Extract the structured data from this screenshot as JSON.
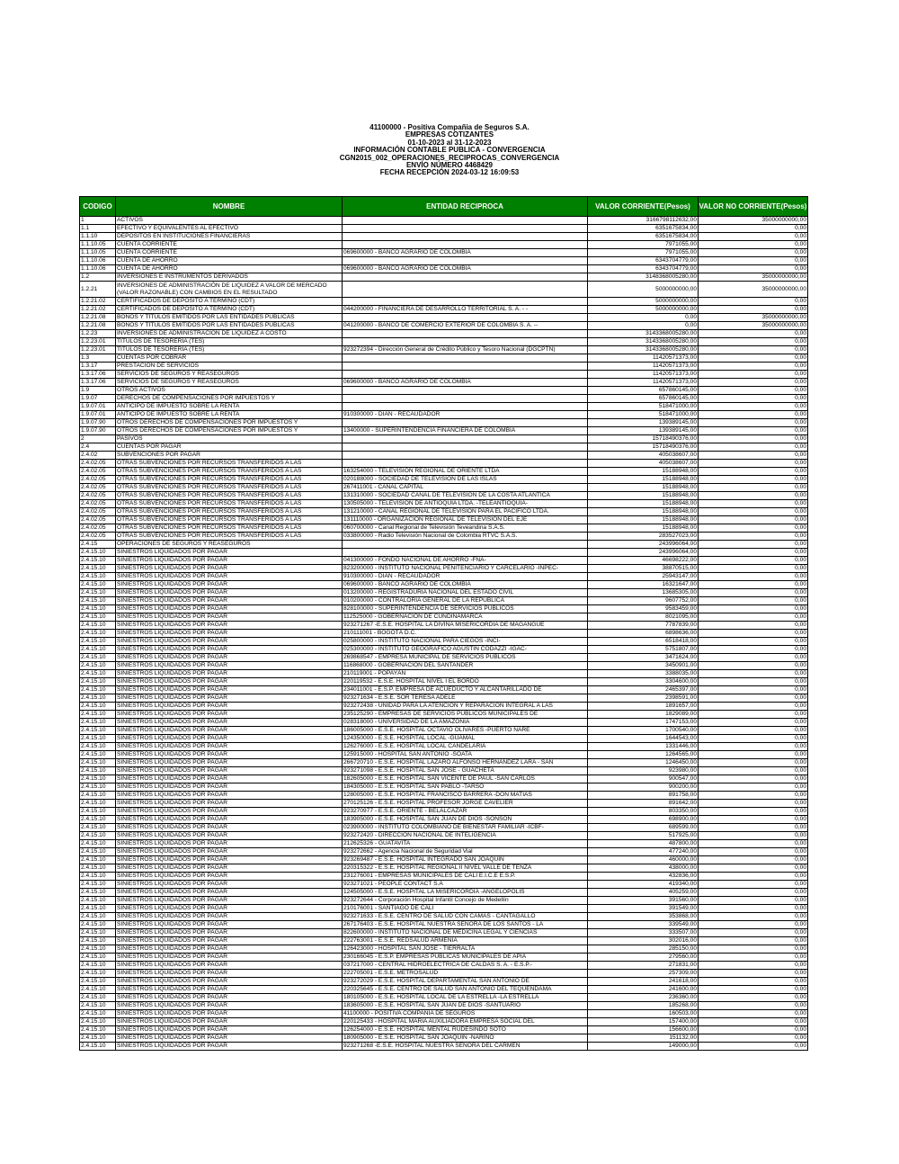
{
  "header": {
    "lines": [
      "41100000 - Positiva Compañia de Seguros S.A.",
      "EMPRESAS COTIZANTES",
      "01-10-2023 al 31-12-2023",
      "INFORMACIÓN CONTABLE PUBLICA - CONVERGENCIA",
      "CGN2015_002_OPERACIONES_RECIPROCAS_CONVERGENCIA",
      "ENVÍO NÚMERO 4468429",
      "FECHA RECEPCIÓN 2024-03-12 16:09:53"
    ]
  },
  "table": {
    "header_color": "#008000",
    "columns": [
      "CODIGO",
      "NOMBRE",
      "ENTIDAD RECIPROCA",
      "VALOR CORRIENTE(Pesos)",
      "VALOR NO CORRIENTE(Pesos)"
    ],
    "rows": [
      [
        "1",
        "ACTIVOS",
        "",
        "3166798112632,00",
        "35000000000,00"
      ],
      [
        "1.1",
        "EFECTIVO Y EQUIVALENTES AL EFECTIVO",
        "",
        "6351675834,00",
        "0,00"
      ],
      [
        "1.1.10",
        "DEPÓSITOS EN INSTITUCIONES FINANCIERAS",
        "",
        "6351675834,00",
        "0,00"
      ],
      [
        "1.1.10.05",
        "CUENTA CORRIENTE",
        "",
        "7971055,00",
        "0,00"
      ],
      [
        "1.1.10.05",
        "CUENTA CORRIENTE",
        "069600000 - BANCO AGRARIO DE COLOMBIA",
        "7971055,00",
        "0,00"
      ],
      [
        "1.1.10.06",
        "CUENTA DE AHORRO",
        "",
        "6343704779,00",
        "0,00"
      ],
      [
        "1.1.10.06",
        "CUENTA DE AHORRO",
        "069600000 - BANCO AGRARIO DE COLOMBIA",
        "6343704779,00",
        "0,00"
      ],
      [
        "1.2",
        "INVERSIONES E INSTRUMENTOS DERIVADOS",
        "",
        "3148368005280,00",
        "35000000000,00"
      ],
      [
        "1.2.21",
        "INVERSIONES DE ADMINISTRACIÓN DE LIQUIDEZ A VALOR DE MERCADO (VALOR RAZONABLE) CON CAMBIOS EN EL RESULTADO",
        "",
        "5000000000,00",
        "35000000000,00"
      ],
      [
        "1.2.21.02",
        "CERTIFICADOS DE DEPÓSITO A TÉRMINO (CDT)",
        "",
        "5000000000,00",
        "0,00"
      ],
      [
        "1.2.21.02",
        "CERTIFICADOS DE DEPÓSITO A TÉRMINO (CDT)",
        "044200000 - FINANCIERA DE DESARROLLO TERRITORIAL S. A. - -",
        "5000000000,00",
        "0,00"
      ],
      [
        "1.2.21.08",
        "BONOS Y TÍTULOS EMITIDOS POR LAS ENTIDADES PÚBLICAS",
        "",
        "0,00",
        "35000000000,00"
      ],
      [
        "1.2.21.08",
        "BONOS Y TÍTULOS EMITIDOS POR LAS ENTIDADES PÚBLICAS",
        "041200000 - BANCO DE COMERCIO EXTERIOR DE COLOMBIA S. A. --",
        "0,00",
        "35000000000,00"
      ],
      [
        "1.2.23",
        "INVERSIONES DE ADMINISTRACIÓN DE LIQUIDEZ A COSTO",
        "",
        "3143368005280,00",
        "0,00"
      ],
      [
        "1.2.23.01",
        "TÍTULOS DE TESORERÍA (TES)",
        "",
        "3143368005280,00",
        "0,00"
      ],
      [
        "1.2.23.01",
        "TÍTULOS DE TESORERÍA (TES)",
        "923272394 - Dirección General de Crédito Público y Tesoro Nacional (DGCPTN)",
        "3143368005280,00",
        "0,00"
      ],
      [
        "1.3",
        "CUENTAS POR COBRAR",
        "",
        "11420571373,00",
        "0,00"
      ],
      [
        "1.3.17",
        "PRESTACIÓN DE SERVICIOS",
        "",
        "11420571373,00",
        "0,00"
      ],
      [
        "1.3.17.06",
        "SERVICIOS DE SEGUROS Y REASEGUROS",
        "",
        "11420571373,00",
        "0,00"
      ],
      [
        "1.3.17.06",
        "SERVICIOS DE SEGUROS Y REASEGUROS",
        "069600000 - BANCO AGRARIO DE COLOMBIA",
        "11420571373,00",
        "0,00"
      ],
      [
        "1.9",
        "OTROS ACTIVOS",
        "",
        "657860145,00",
        "0,00"
      ],
      [
        "1.9.07",
        "DERECHOS DE COMPENSACIONES POR IMPUESTOS Y",
        "",
        "657860145,00",
        "0,00"
      ],
      [
        "1.9.07.01",
        "ANTICIPO DE IMPUESTO SOBRE LA RENTA",
        "",
        "518471000,00",
        "0,00"
      ],
      [
        "1.9.07.01",
        "ANTICIPO DE IMPUESTO SOBRE LA RENTA",
        "910300000 - DIAN - RECAUDADOR",
        "518471000,00",
        "0,00"
      ],
      [
        "1.9.07.90",
        "OTROS DERECHOS DE COMPENSACIONES POR IMPUESTOS Y",
        "",
        "139389145,00",
        "0,00"
      ],
      [
        "1.9.07.90",
        "OTROS DERECHOS DE COMPENSACIONES POR IMPUESTOS Y",
        "13400000 - SUPERINTENDENCIA FINANCIERA DE COLOMBIA",
        "139389145,00",
        "0,00"
      ],
      [
        "2",
        "PASIVOS",
        "",
        "15718490376,00",
        "0,00"
      ],
      [
        "2.4",
        "CUENTAS POR PAGAR",
        "",
        "15718490376,00",
        "0,00"
      ],
      [
        "2.4.02",
        "SUBVENCIONES POR PAGAR",
        "",
        "405038607,00",
        "0,00"
      ],
      [
        "2.4.02.05",
        "OTRAS SUBVENCIONES POR RECURSOS TRANSFERIDOS A LAS",
        "",
        "405038607,00",
        "0,00"
      ],
      [
        "2.4.02.05",
        "OTRAS SUBVENCIONES POR RECURSOS TRANSFERIDOS A LAS",
        "163254000 - TELEVISION REGIONAL DE ORIENTE LTDA",
        "15188948,00",
        "0,00"
      ],
      [
        "2.4.02.05",
        "OTRAS SUBVENCIONES POR RECURSOS TRANSFERIDOS A LAS",
        "020188000 - SOCIEDAD DE TELEVISIÓN DE LAS ISLAS",
        "15188948,00",
        "0,00"
      ],
      [
        "2.4.02.05",
        "OTRAS SUBVENCIONES POR RECURSOS TRANSFERIDOS A LAS",
        "267411001 - CANAL CAPITAL",
        "15188948,00",
        "0,00"
      ],
      [
        "2.4.02.05",
        "OTRAS SUBVENCIONES POR RECURSOS TRANSFERIDOS A LAS",
        "131310000 - SOCIEDAD CANAL DE TELEVISION DE LA COSTA ATLANTICA",
        "15188948,00",
        "0,00"
      ],
      [
        "2.4.02.05",
        "OTRAS SUBVENCIONES POR RECURSOS TRANSFERIDOS A LAS",
        "130505000 - TELEVISION DE ANTIOQUIA LTDA. -TELEANTIOQUIA-",
        "15188948,00",
        "0,00"
      ],
      [
        "2.4.02.05",
        "OTRAS SUBVENCIONES POR RECURSOS TRANSFERIDOS A LAS",
        "131210000 - CANAL REGIONAL DE TELEVISIÓN PARA EL PACIFICO LTDA.",
        "15188948,00",
        "0,00"
      ],
      [
        "2.4.02.05",
        "OTRAS SUBVENCIONES POR RECURSOS TRANSFERIDOS A LAS",
        "131110000 - ORGANIZACION REGIONAL DE TELEVISION DEL EJE",
        "15188948,00",
        "0,00"
      ],
      [
        "2.4.02.05",
        "OTRAS SUBVENCIONES POR RECURSOS TRANSFERIDOS A LAS",
        "060700000 - Canal Regional de Televisión Teveandina S.A.S.",
        "15188948,00",
        "0,00"
      ],
      [
        "2.4.02.05",
        "OTRAS SUBVENCIONES POR RECURSOS TRANSFERIDOS A LAS",
        "033800000 - Radio Televisión Nacional de Colombia RTVC S.A.S.",
        "283527023,00",
        "0,00"
      ],
      [
        "2.4.15",
        "OPERACIONES DE SEGUROS Y REASEGUROS",
        "",
        "243996064,00",
        "0,00"
      ],
      [
        "2.4.15.10",
        "SINIESTROS LIQUIDADOS POR PAGAR",
        "",
        "243996064,00",
        "0,00"
      ],
      [
        "2.4.15.10",
        "SINIESTROS LIQUIDADOS POR PAGAR",
        "041300000 - FONDO NACIONAL DE AHORRO -FNA-",
        "46698222,00",
        "0,00"
      ],
      [
        "2.4.15.10",
        "SINIESTROS LIQUIDADOS POR PAGAR",
        "823200000 - INSTITUTO NACIONAL PENITENCIARIO Y CARCELARIO -INPEC-",
        "38870515,00",
        "0,00"
      ],
      [
        "2.4.15.10",
        "SINIESTROS LIQUIDADOS POR PAGAR",
        "910300000 - DIAN - RECAUDADOR",
        "25943147,00",
        "0,00"
      ],
      [
        "2.4.15.10",
        "SINIESTROS LIQUIDADOS POR PAGAR",
        "069600000 - BANCO AGRARIO DE COLOMBIA",
        "16321647,00",
        "0,00"
      ],
      [
        "2.4.15.10",
        "SINIESTROS LIQUIDADOS POR PAGAR",
        "013200000 - REGISTRADURIA NACIONAL DEL ESTADO CIVIL",
        "13685305,00",
        "0,00"
      ],
      [
        "2.4.15.10",
        "SINIESTROS LIQUIDADOS POR PAGAR",
        "010200000 - CONTRALORIA GENERAL DE LA REPUBLICA",
        "9607752,00",
        "0,00"
      ],
      [
        "2.4.15.10",
        "SINIESTROS LIQUIDADOS POR PAGAR",
        "828100000 - SUPERINTENDENCIA DE SERVICIOS PUBLICOS",
        "9583459,00",
        "0,00"
      ],
      [
        "2.4.15.10",
        "SINIESTROS LIQUIDADOS POR PAGAR",
        "112525000 - GOBERNACIÓN DE CUNDINAMARCA",
        "8021095,00",
        "0,00"
      ],
      [
        "2.4.15.10",
        "SINIESTROS LIQUIDADOS POR PAGAR",
        "923271267 -E.S.E. HOSPITAL LA DIVINA MISERICORDIA DE MAGANGUE",
        "7787839,00",
        "0,00"
      ],
      [
        "2.4.15.10",
        "SINIESTROS LIQUIDADOS POR PAGAR",
        "210111001 - BOGOTÁ D.C.",
        "6898636,00",
        "0,00"
      ],
      [
        "2.4.15.10",
        "SINIESTROS LIQUIDADOS POR PAGAR",
        "025800000 - INSTITUTO NACIONAL PARA CIEGOS -INCI-",
        "6518418,00",
        "0,00"
      ],
      [
        "2.4.15.10",
        "SINIESTROS LIQUIDADOS POR PAGAR",
        "025300000 - INSTITUTO GEOGRAFICO AGUSTIN CODAZZI -IGAC-",
        "5751807,00",
        "0,00"
      ],
      [
        "2.4.15.10",
        "SINIESTROS LIQUIDADOS POR PAGAR",
        "269868547 - EMPRESA MUNICIPAL DE SERVICIOS PÚBLICOS",
        "3471624,00",
        "0,00"
      ],
      [
        "2.4.15.10",
        "SINIESTROS LIQUIDADOS POR PAGAR",
        "116868000 - GOBERNACIÓN DEL SANTANDER",
        "3450901,00",
        "0,00"
      ],
      [
        "2.4.15.10",
        "SINIESTROS LIQUIDADOS POR PAGAR",
        "210119001 - POPAYÁN",
        "3388035,00",
        "0,00"
      ],
      [
        "2.4.15.10",
        "SINIESTROS LIQUIDADOS POR PAGAR",
        "220119532 - E.S.E. HOSPITAL NIVEL I EL BORDO",
        "3304600,00",
        "0,00"
      ],
      [
        "2.4.15.10",
        "SINIESTROS LIQUIDADOS POR PAGAR",
        "234011001 - E.S.P. EMPRESA DE ACUEDUCTO Y ALCANTARILLADO DE",
        "2465397,00",
        "0,00"
      ],
      [
        "2.4.15.10",
        "SINIESTROS LIQUIDADOS POR PAGAR",
        "923271634 - E.S.E. SOR TERESA ADELE",
        "2398591,00",
        "0,00"
      ],
      [
        "2.4.15.10",
        "SINIESTROS LIQUIDADOS POR PAGAR",
        "923272438 - UNIDAD PARA LA ATENCIÓN Y REPARACIÓN INTEGRAL A LAS",
        "1891657,00",
        "0,00"
      ],
      [
        "2.4.15.10",
        "SINIESTROS LIQUIDADOS POR PAGAR",
        "235125290 - EMPRESAS DE SERVICIOS PUBLICOS MUNICIPALES DE",
        "1829089,00",
        "0,00"
      ],
      [
        "2.4.15.10",
        "SINIESTROS LIQUIDADOS POR PAGAR",
        "028318000 - UNIVERSIDAD DE LA AMAZONIA",
        "1747153,00",
        "0,00"
      ],
      [
        "2.4.15.10",
        "SINIESTROS LIQUIDADOS POR PAGAR",
        "186005000 - E.S.E. HOSPITAL OCTAVIO OLIVARES -PUERTO NARE",
        "1700540,00",
        "0,00"
      ],
      [
        "2.4.15.10",
        "SINIESTROS LIQUIDADOS POR PAGAR",
        "124350000 - E.S.E. HOSPITAL LOCAL -GUAMAL",
        "1644543,00",
        "0,00"
      ],
      [
        "2.4.15.10",
        "SINIESTROS LIQUIDADOS POR PAGAR",
        "126276000 - E.S.E. HOSPITAL LOCAL CANDELARIA",
        "1331446,00",
        "0,00"
      ],
      [
        "2.4.15.10",
        "SINIESTROS LIQUIDADOS POR PAGAR",
        "125915000 - HOSPITAL SAN ANTONIO -SOATA",
        "1264565,00",
        "0,00"
      ],
      [
        "2.4.15.10",
        "SINIESTROS LIQUIDADOS POR PAGAR",
        "266720710 - E.S.E. HOSPITAL LAZARO ALFONSO HERNANDEZ LARA - SAN",
        "1246450,00",
        "0,00"
      ],
      [
        "2.4.15.10",
        "SINIESTROS LIQUIDADOS POR PAGAR",
        "923271098 - E.S.E. HOSPITAL SAN JOSE - GUACHETA",
        "923980,00",
        "0,00"
      ],
      [
        "2.4.15.10",
        "SINIESTROS LIQUIDADOS POR PAGAR",
        "182605000 - E.S.E. HOSPITAL SAN VICENTE DE PAUL -SAN CARLOS",
        "900547,00",
        "0,00"
      ],
      [
        "2.4.15.10",
        "SINIESTROS LIQUIDADOS POR PAGAR",
        "184305000 - E.S.E. HOSPITAL SAN PABLO -TARSO",
        "900200,00",
        "0,00"
      ],
      [
        "2.4.15.10",
        "SINIESTROS LIQUIDADOS POR PAGAR",
        "128005000 - E.S.E. HOSPITAL FRANCISCO BARRERA -DON MATIAS",
        "891758,00",
        "0,00"
      ],
      [
        "2.4.15.10",
        "SINIESTROS LIQUIDADOS POR PAGAR",
        "270125126 - E.S.E. HOSPITAL PROFESOR JORGE CAVELIER",
        "891642,00",
        "0,00"
      ],
      [
        "2.4.15.10",
        "SINIESTROS LIQUIDADOS POR PAGAR",
        "923270977 - E.S.E. ORIENTE - BELALCAZAR",
        "803350,00",
        "0,00"
      ],
      [
        "2.4.15.10",
        "SINIESTROS LIQUIDADOS POR PAGAR",
        "183905000 - E.S.E. HOSPITAL SAN JUAN DE DIOS -SONSÓN",
        "698900,00",
        "0,00"
      ],
      [
        "2.4.15.10",
        "SINIESTROS LIQUIDADOS POR PAGAR",
        "023900000 - INSTITUTO COLOMBIANO DE BIENESTAR FAMILIAR -ICBF-",
        "689599,00",
        "0,00"
      ],
      [
        "2.4.15.10",
        "SINIESTROS LIQUIDADOS POR PAGAR",
        "923272420 - DIRECCIÓN NACIONAL DE INTELIGENCIA",
        "517925,00",
        "0,00"
      ],
      [
        "2.4.15.10",
        "SINIESTROS LIQUIDADOS POR PAGAR",
        "212625326 - GUATAVITA",
        "487800,00",
        "0,00"
      ],
      [
        "2.4.15.10",
        "SINIESTROS LIQUIDADOS POR PAGAR",
        "923272662 - Agencia Nacional de Seguridad Vial",
        "477240,00",
        "0,00"
      ],
      [
        "2.4.15.10",
        "SINIESTROS LIQUIDADOS POR PAGAR",
        "923269487 - E.S.E. HOSPITAL INTEGRADO SAN JOAQUIN",
        "460000,00",
        "0,00"
      ],
      [
        "2.4.15.10",
        "SINIESTROS LIQUIDADOS POR PAGAR",
        "220315322 - E.S.E. HOSPITAL REGIONAL II NIVEL VALLE DE TENZA",
        "438000,00",
        "0,00"
      ],
      [
        "2.4.15.10",
        "SINIESTROS LIQUIDADOS POR PAGAR",
        "231276001 - EMPRESAS MUNICIPALES DE CALI E.I.C.E E.S.P.",
        "432836,00",
        "0,00"
      ],
      [
        "2.4.15.10",
        "SINIESTROS LIQUIDADOS POR PAGAR",
        "923271021 - PEOPLE CONTACT S.A",
        "419340,00",
        "0,00"
      ],
      [
        "2.4.15.10",
        "SINIESTROS LIQUIDADOS POR PAGAR",
        "124505000 - E.S.E. HOSPITAL LA MISERICORDIA -ANGELÓPOLIS",
        "405259,00",
        "0,00"
      ],
      [
        "2.4.15.10",
        "SINIESTROS LIQUIDADOS POR PAGAR",
        "923272644 - Corporación Hospital Infantil Concejo de Medellín",
        "391560,00",
        "0,00"
      ],
      [
        "2.4.15.10",
        "SINIESTROS LIQUIDADOS POR PAGAR",
        "210176001 - SANTIAGO DE CALI",
        "391549,00",
        "0,00"
      ],
      [
        "2.4.15.10",
        "SINIESTROS LIQUIDADOS POR PAGAR",
        "923271633 - E.S.E. CENTRO DE SALUD CON CAMAS - CANTAGALLO",
        "353868,00",
        "0,00"
      ],
      [
        "2.4.15.10",
        "SINIESTROS LIQUIDADOS POR PAGAR",
        "267176403 - E.S.E. HOSPITAL NUESTRA SEÑORA DE LOS SANTOS - LA",
        "339549,00",
        "0,00"
      ],
      [
        "2.4.15.10",
        "SINIESTROS LIQUIDADOS POR PAGAR",
        "822600000 - INSTITUTO NACIONAL DE MEDICINA LEGAL Y CIENCIAS",
        "333507,00",
        "0,00"
      ],
      [
        "2.4.15.10",
        "SINIESTROS LIQUIDADOS POR PAGAR",
        "222763001 - E.S.E. REDSALUD ARMENIA",
        "302016,00",
        "0,00"
      ],
      [
        "2.4.15.10",
        "SINIESTROS LIQUIDADOS POR PAGAR",
        "126423000 - HOSPITAL SAN JOSE - TIERRALTA",
        "285150,00",
        "0,00"
      ],
      [
        "2.4.15.10",
        "SINIESTROS LIQUIDADOS POR PAGAR",
        "230166045 - E.S.P. EMPRESAS PÚBLICAS MUNICIPALES DE APIA",
        "279560,00",
        "0,00"
      ],
      [
        "2.4.15.10",
        "SINIESTROS LIQUIDADOS POR PAGAR",
        "037217000 - CENTRAL HIDROELECTRICA DE CALDAS S. A. - E.S.P.-",
        "271831,00",
        "0,00"
      ],
      [
        "2.4.15.10",
        "SINIESTROS LIQUIDADOS POR PAGAR",
        "222705001 - E.S.E. METROSALUD",
        "257309,00",
        "0,00"
      ],
      [
        "2.4.15.10",
        "SINIESTROS LIQUIDADOS POR PAGAR",
        "923272029 - E.S.E. HOSPITAL DEPARTAMENTAL SAN ANTONIO DE",
        "241618,00",
        "0,00"
      ],
      [
        "2.4.15.10",
        "SINIESTROS LIQUIDADOS POR PAGAR",
        "220325645 - E.S.E. CENTRO DE SALUD SAN ANTONIO DEL TEQUENDAMA",
        "241600,00",
        "0,00"
      ],
      [
        "2.4.15.10",
        "SINIESTROS LIQUIDADOS POR PAGAR",
        "180105000 - E.S.E. HOSPITAL LOCAL DE LA ESTRELLA -LA ESTRELLA",
        "236360,00",
        "0,00"
      ],
      [
        "2.4.15.10",
        "SINIESTROS LIQUIDADOS POR PAGAR",
        "183605000 - E.S.E. HOSPITAL SAN JUAN DE DIOS -SANTUARIO",
        "185268,00",
        "0,00"
      ],
      [
        "2.4.15.10",
        "SINIESTROS LIQUIDADOS POR PAGAR",
        "41100000 - POSITIVA COMPAÑIA DE SEGUROS",
        "160503,00",
        "0,00"
      ],
      [
        "2.4.15.10",
        "SINIESTROS LIQUIDADOS POR PAGAR",
        "220125433 - HOSPITAL MARIA AUXILIADORA EMPRESA SOCIAL DEL",
        "157400,00",
        "0,00"
      ],
      [
        "2.4.15.10",
        "SINIESTROS LIQUIDADOS POR PAGAR",
        "126254000 - E.S.E. HOSPITAL MENTAL RUDESINDO SOTO",
        "156600,00",
        "0,00"
      ],
      [
        "2.4.15.10",
        "SINIESTROS LIQUIDADOS POR PAGAR",
        "180905000 - E.S.E. HOSPITAL SAN JOAQUIN -NARIÑO",
        "151132,00",
        "0,00"
      ],
      [
        "2.4.15.10",
        "SINIESTROS LIQUIDADOS POR PAGAR",
        "923271268 -E.S.E. HOSPITAL NUESTRA SEÑORA DEL CARMEN",
        "149000,00",
        "0,00"
      ]
    ]
  }
}
